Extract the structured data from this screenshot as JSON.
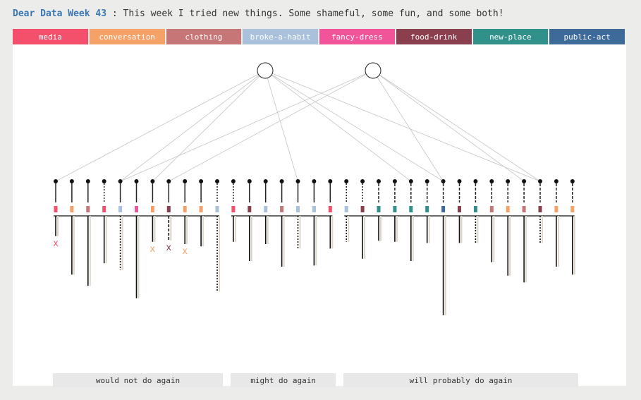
{
  "title": {
    "highlight": "Dear Data Week 43",
    "rest": " : This week I tried new things. Some shameful, some fun, and some both!"
  },
  "colors": {
    "media": "#f4506b",
    "conversation": "#f6a167",
    "clothing": "#c77677",
    "broke-a-habit": "#a9c1db",
    "fancy-dress": "#f2549a",
    "food-drink": "#8a3f4e",
    "new-place": "#2f9189",
    "public-act": "#3e6a99"
  },
  "categories": [
    {
      "id": "media",
      "label": "media"
    },
    {
      "id": "conversation",
      "label": "conversation"
    },
    {
      "id": "clothing",
      "label": "clothing"
    },
    {
      "id": "broke-a-habit",
      "label": "broke-a-habit"
    },
    {
      "id": "fancy-dress",
      "label": "fancy-dress"
    },
    {
      "id": "food-drink",
      "label": "food-drink"
    },
    {
      "id": "new-place",
      "label": "new-place"
    },
    {
      "id": "public-act",
      "label": "public-act"
    }
  ],
  "groups": [
    {
      "label": "would not do again"
    },
    {
      "label": "might do again"
    },
    {
      "label": "will probably do again"
    }
  ],
  "x_mark": "x",
  "items": [
    {
      "cat": "media",
      "group": 0,
      "stem": "solid",
      "link": 0,
      "drop": 0.18,
      "mark": "x"
    },
    {
      "cat": "conversation",
      "group": 0,
      "stem": "solid",
      "drop": 0.52
    },
    {
      "cat": "clothing",
      "group": 0,
      "stem": "solid",
      "drop": 0.62
    },
    {
      "cat": "media",
      "group": 0,
      "stem": "dotted",
      "drop": 0.42
    },
    {
      "cat": "broke-a-habit",
      "group": 0,
      "stem": "solid",
      "link": 0,
      "link2": 1,
      "drop": 0.48,
      "drop_style": "dotted"
    },
    {
      "cat": "fancy-dress",
      "group": 0,
      "stem": "solid",
      "drop": 0.73
    },
    {
      "cat": "conversation",
      "group": 0,
      "stem": "solid",
      "link": 0,
      "drop": 0.23,
      "mark": "x"
    },
    {
      "cat": "food-drink",
      "group": 0,
      "stem": "solid",
      "link": 1,
      "drop": 0.22,
      "drop_style": "dashed",
      "mark": "x"
    },
    {
      "cat": "conversation",
      "group": 0,
      "stem": "solid",
      "drop": 0.25,
      "mark": "x"
    },
    {
      "cat": "conversation",
      "group": 0,
      "stem": "solid",
      "drop": 0.27
    },
    {
      "cat": "broke-a-habit",
      "group": 0,
      "stem": "dotted",
      "drop": 0.67,
      "drop_style": "dotted"
    },
    {
      "cat": "media",
      "group": 1,
      "stem": "dotted",
      "drop": 0.23
    },
    {
      "cat": "food-drink",
      "group": 1,
      "stem": "solid",
      "drop": 0.4
    },
    {
      "cat": "broke-a-habit",
      "group": 1,
      "stem": "solid",
      "drop": 0.25
    },
    {
      "cat": "clothing",
      "group": 1,
      "stem": "solid",
      "drop": 0.45
    },
    {
      "cat": "broke-a-habit",
      "group": 1,
      "stem": "solid",
      "link": 0,
      "drop": 0.29,
      "drop_style": "dotted"
    },
    {
      "cat": "broke-a-habit",
      "group": 1,
      "stem": "solid",
      "drop": 0.44
    },
    {
      "cat": "media",
      "group": 1,
      "stem": "solid",
      "drop": 0.29
    },
    {
      "cat": "broke-a-habit",
      "group": 2,
      "stem": "dotted",
      "drop": 0.23,
      "drop_style": "dotted"
    },
    {
      "cat": "food-drink",
      "group": 2,
      "stem": "dotted",
      "drop": 0.38
    },
    {
      "cat": "new-place",
      "group": 2,
      "stem": "dashed",
      "drop": 0.22
    },
    {
      "cat": "new-place",
      "group": 2,
      "stem": "dashed",
      "drop": 0.23
    },
    {
      "cat": "new-place",
      "group": 2,
      "stem": "dashed",
      "link": 0,
      "drop": 0.4
    },
    {
      "cat": "new-place",
      "group": 2,
      "stem": "dashed",
      "drop": 0.24
    },
    {
      "cat": "public-act",
      "group": 2,
      "stem": "dashed",
      "link": 0,
      "link2": 1,
      "drop": 0.88
    },
    {
      "cat": "food-drink",
      "group": 2,
      "stem": "dashed",
      "drop": 0.24
    },
    {
      "cat": "new-place",
      "group": 2,
      "stem": "dashed",
      "drop": 0.24,
      "drop_style": "dotted"
    },
    {
      "cat": "clothing",
      "group": 2,
      "stem": "dashed",
      "drop": 0.41
    },
    {
      "cat": "conversation",
      "group": 2,
      "stem": "dashed",
      "drop": 0.53
    },
    {
      "cat": "clothing",
      "group": 2,
      "stem": "dashed",
      "link": 1,
      "drop": 0.59
    },
    {
      "cat": "food-drink",
      "group": 2,
      "stem": "dashed",
      "link": 0,
      "link2": 1,
      "drop": 0.24,
      "drop_style": "dotted"
    },
    {
      "cat": "conversation",
      "group": 2,
      "stem": "dashed",
      "drop": 0.45
    },
    {
      "cat": "conversation",
      "group": 2,
      "stem": "dashed",
      "drop": 0.52
    }
  ]
}
